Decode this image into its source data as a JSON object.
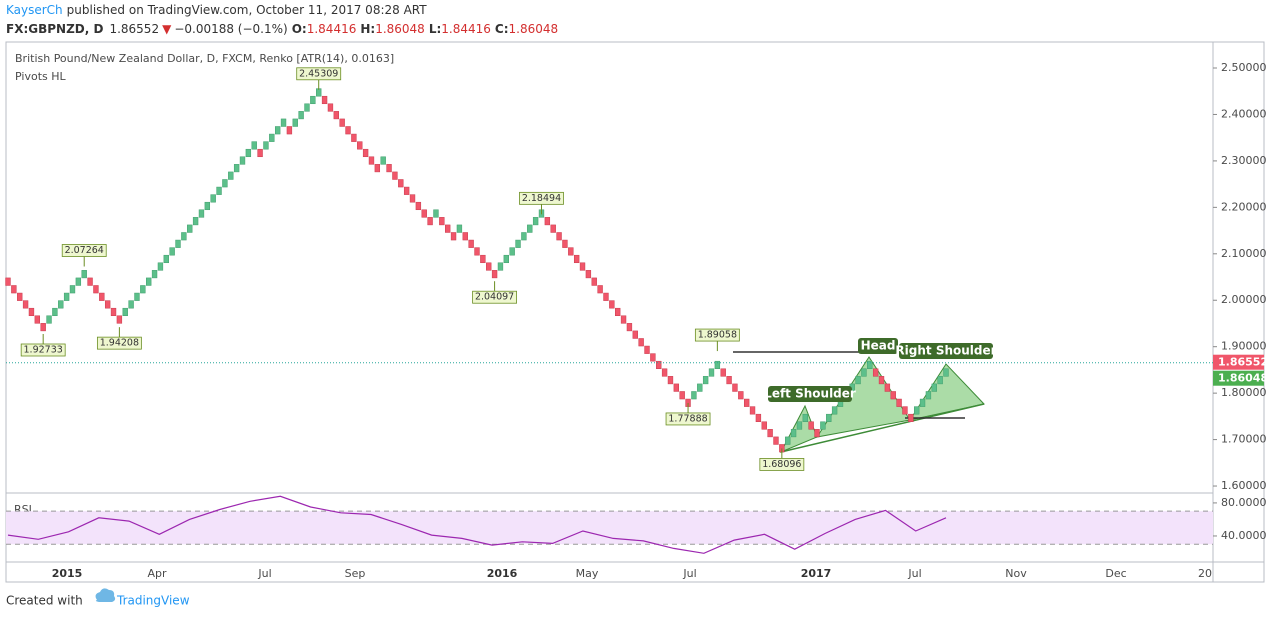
{
  "header": {
    "user": "KayserCh",
    "published": "published on TradingView.com, October 11, 2017 08:28 ART",
    "symbol": "FX:GBPNZD, D",
    "price": "1.86552",
    "arrow": "▼",
    "change": "−0.00188 (−0.1%)",
    "o_label": "O:",
    "open": "1.84416",
    "h_label": "H:",
    "high": "1.86048",
    "l_label": "L:",
    "low": "1.84416",
    "c_label": "C:",
    "close": "1.86048"
  },
  "chart_data": [
    {
      "type": "renko",
      "title": "British Pound/New Zealand Dollar, D, FXCM, Renko [ATR(14), 0.0163]",
      "subtitle": "Pivots HL",
      "brick_size": 0.0163,
      "up_color": "#5cbf8a",
      "down_color": "#f0566a",
      "values": [
        2.0318,
        2.0155,
        1.9992,
        1.9829,
        1.9666,
        1.9503,
        1.934,
        1.9666,
        1.9829,
        1.9992,
        2.0155,
        2.0318,
        2.0481,
        2.0644,
        2.0318,
        2.0155,
        1.9992,
        1.9829,
        1.9666,
        1.9503,
        1.9829,
        1.9992,
        2.0155,
        2.0318,
        2.0481,
        2.0644,
        2.0807,
        2.097,
        2.1133,
        2.1296,
        2.1459,
        2.1622,
        2.1785,
        2.1948,
        2.2111,
        2.2274,
        2.2437,
        2.26,
        2.2763,
        2.2926,
        2.3089,
        2.3252,
        2.3415,
        2.3089,
        2.3415,
        2.3578,
        2.3741,
        2.3904,
        2.3578,
        2.3904,
        2.4067,
        2.423,
        2.4393,
        2.4556,
        2.423,
        2.4067,
        2.3904,
        2.3741,
        2.3578,
        2.3415,
        2.3252,
        2.3089,
        2.2926,
        2.2763,
        2.3089,
        2.2763,
        2.26,
        2.2437,
        2.2274,
        2.2111,
        2.1948,
        2.1785,
        2.1622,
        2.1948,
        2.1622,
        2.1459,
        2.1296,
        2.1622,
        2.1296,
        2.1133,
        2.097,
        2.0807,
        2.0644,
        2.0481,
        2.0807,
        2.097,
        2.1133,
        2.1296,
        2.1459,
        2.1622,
        2.1785,
        2.1948,
        2.1622,
        2.1459,
        2.1296,
        2.1133,
        2.097,
        2.0807,
        2.0644,
        2.0481,
        2.0318,
        2.0155,
        1.9992,
        1.9829,
        1.9666,
        1.9503,
        1.934,
        1.9177,
        1.9014,
        1.8851,
        1.8688,
        1.8525,
        1.8362,
        1.8199,
        1.8036,
        1.7873,
        1.771,
        1.8036,
        1.8199,
        1.8362,
        1.8525,
        1.8688,
        1.8362,
        1.8199,
        1.8036,
        1.7873,
        1.771,
        1.7547,
        1.7384,
        1.7221,
        1.7058,
        1.6895,
        1.6732,
        1.7058,
        1.7221,
        1.7384,
        1.7547,
        1.7221,
        1.7058,
        1.7384,
        1.7547,
        1.771,
        1.7873,
        1.8036,
        1.8199,
        1.8362,
        1.8525,
        1.8688,
        1.8362,
        1.8199,
        1.8036,
        1.7873,
        1.771,
        1.7547,
        1.7384,
        1.771,
        1.7873,
        1.8036,
        1.8199,
        1.8362,
        1.8525
      ],
      "pivots": [
        1.92733,
        2.07264,
        1.94208,
        2.45309,
        2.04097,
        2.18494,
        1.77888,
        1.89058,
        1.68096
      ],
      "annotations": [
        "Left Shoulder",
        "Head",
        "Right Shoulder"
      ],
      "last_price": 1.86552,
      "last_close": 1.86048,
      "ylim": [
        1.585,
        2.556
      ],
      "yticks": [
        {
          "value": 1.6,
          "label": "1.60000"
        },
        {
          "value": 1.7,
          "label": "1.70000"
        },
        {
          "value": 1.8,
          "label": "1.80000"
        },
        {
          "value": 1.9,
          "label": "1.90000"
        },
        {
          "value": 2.0,
          "label": "2.00000"
        },
        {
          "value": 2.1,
          "label": "2.10000"
        },
        {
          "value": 2.2,
          "label": "2.20000"
        },
        {
          "value": 2.3,
          "label": "2.30000"
        },
        {
          "value": 2.4,
          "label": "2.40000"
        },
        {
          "value": 2.5,
          "label": "2.50000"
        }
      ],
      "x_labels": [
        "2015",
        "Apr",
        "Jul",
        "Sep",
        "2016",
        "May",
        "Jul",
        "2017",
        "Jul",
        "Nov",
        "Dec",
        "20"
      ]
    },
    {
      "type": "line",
      "title": "RSI",
      "color": "#9c27b0",
      "band": [
        30,
        70
      ],
      "band_color": "#f3e3fb",
      "values": [
        41,
        36,
        45,
        62,
        58,
        42,
        60,
        72,
        82,
        88,
        75,
        68,
        66,
        54,
        41,
        37,
        29,
        33,
        31,
        46,
        37,
        34,
        25,
        19,
        35,
        42,
        24,
        43,
        60,
        71,
        46,
        62
      ],
      "ylim": [
        8.5,
        92
      ],
      "yticks": [
        {
          "value": 80,
          "label": "80.0000"
        },
        {
          "value": 40,
          "label": "40.0000"
        }
      ]
    }
  ],
  "footer": {
    "created": "Created with",
    "brand": "TradingView"
  }
}
